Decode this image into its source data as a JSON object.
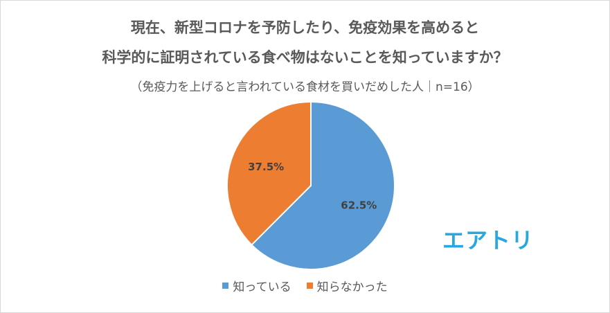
{
  "header": {
    "title_line1": "現在、新型コロナを予防したり、免疫効果を高めると",
    "title_line2": "科学的に証明されている食べ物はないことを知っていますか？",
    "subtitle": "（免疫力を上げると言われている食材を買いだめした人｜n=16）"
  },
  "logo_text": "エアトリ",
  "colors": {
    "blue": "#5b9bd5",
    "orange": "#ed7d31",
    "logo": "#27a8e0"
  },
  "chart_data": {
    "type": "pie",
    "categories": [
      "知っている",
      "知らなかった"
    ],
    "values": [
      62.5,
      37.5
    ],
    "data_labels": [
      "62.5%",
      "37.5%"
    ],
    "colors": [
      "#5b9bd5",
      "#ed7d31"
    ],
    "start": "12 o'clock, clockwise",
    "legend_position": "bottom"
  }
}
